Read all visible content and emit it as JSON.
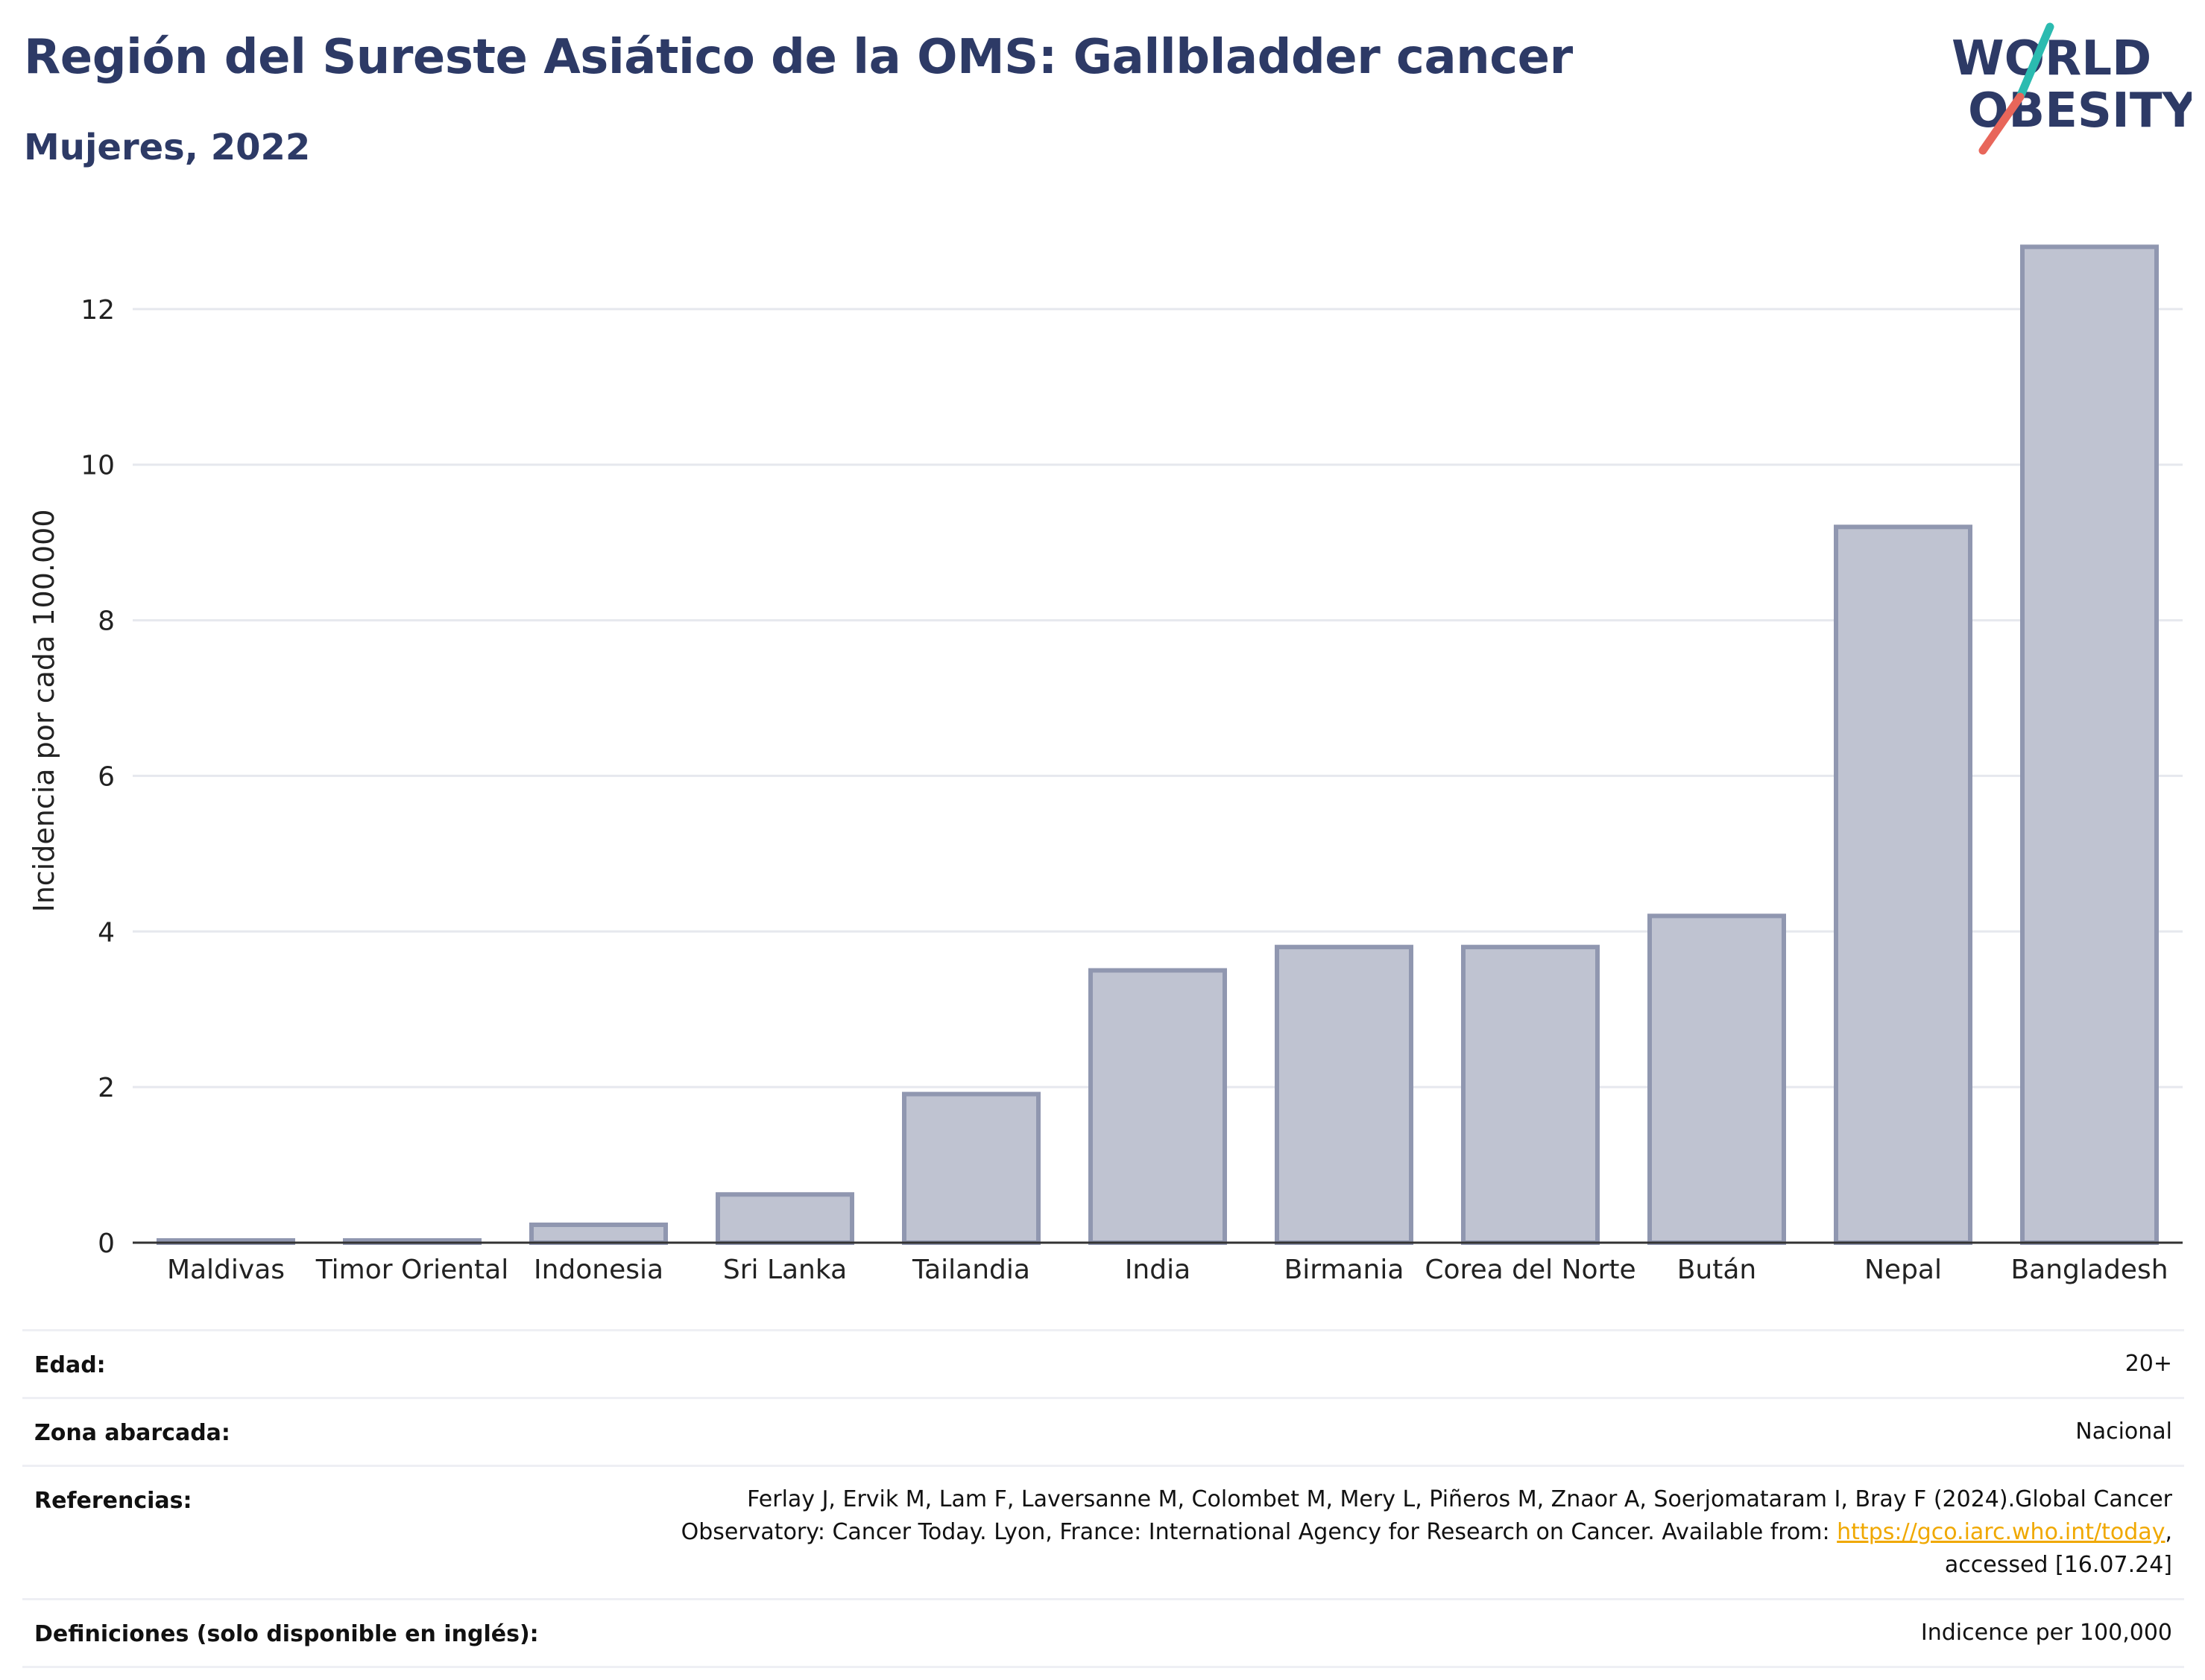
{
  "header": {
    "title": "Región del Sureste Asiático de la OMS: Gallbladder cancer",
    "subtitle": "Mujeres, 2022"
  },
  "logo": {
    "line1": "WORLD",
    "line2": "OBESITY",
    "colors": {
      "text": "#2d3a66",
      "slash_top": "#2bbbb0",
      "slash_bottom": "#e8665a"
    }
  },
  "chart_data": {
    "type": "bar",
    "categories": [
      "Maldivas",
      "Timor Oriental",
      "Indonesia",
      "Sri Lanka",
      "Tailandia",
      "India",
      "Birmania",
      "Corea del Norte",
      "Bután",
      "Nepal",
      "Bangladesh"
    ],
    "values": [
      0.02,
      0.02,
      0.23,
      0.62,
      1.91,
      3.5,
      3.8,
      3.8,
      4.2,
      9.2,
      12.8
    ],
    "ylabel": "Incidencia por cada 100.000",
    "ylim": [
      0,
      13.1
    ],
    "yticks": [
      0,
      2,
      4,
      6,
      8,
      10,
      12
    ],
    "grid": true,
    "colors": {
      "bar_fill": "#bfc3d1",
      "bar_stroke": "#9097b0",
      "grid": "#e6e8ee",
      "axis": "#333333"
    }
  },
  "meta": {
    "age": {
      "label": "Edad:",
      "value": "20+"
    },
    "area": {
      "label": "Zona abarcada:",
      "value": "Nacional"
    },
    "references": {
      "label": "Referencias:",
      "text_before": "Ferlay J, Ervik M, Lam F, Laversanne M, Colombet M, Mery L, Piñeros M, Znaor A, Soerjomataram I, Bray F (2024).Global Cancer Observatory: Cancer Today. Lyon, France: International Agency for Research on Cancer. Available from: ",
      "link": "https://gco.iarc.who.int/today",
      "text_after": ", accessed [16.07.24]"
    },
    "definitions": {
      "label": "Definiciones (solo disponible en inglés):",
      "value": "Indicence per 100,000"
    }
  }
}
